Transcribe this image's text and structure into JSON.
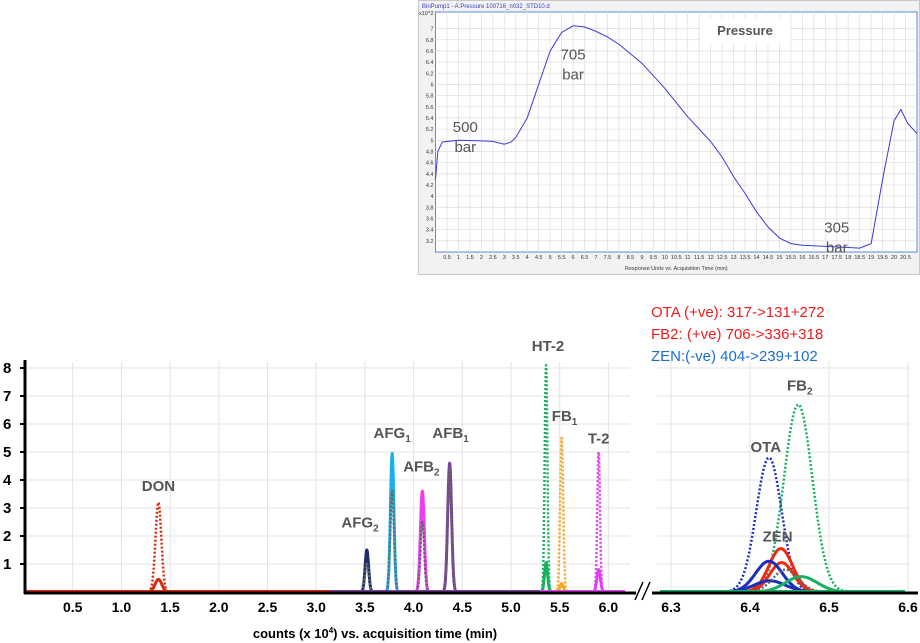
{
  "chart_data": [
    {
      "type": "line",
      "title": "BinPump1 - A:Pressure 100716_n032_STD10.d",
      "annotation_title": "Pressure",
      "y_multiplier": "x10^2",
      "xlabel": "Response Units vs. Acquisition Time (min)",
      "xlim": [
        0,
        21
      ],
      "ylim": [
        3.0,
        7.1
      ],
      "xticks": [
        "0.5",
        "1",
        "1.5",
        "2",
        "2.5",
        "3",
        "3.5",
        "4",
        "4.5",
        "5",
        "5.5",
        "6",
        "6.5",
        "7",
        "7.5",
        "8",
        "8.5",
        "9",
        "9.5",
        "10",
        "10.5",
        "11",
        "11.5",
        "12",
        "12.5",
        "13",
        "13.5",
        "14",
        "14.5",
        "15",
        "15.5",
        "16",
        "16.5",
        "17",
        "17.5",
        "18",
        "18.5",
        "19",
        "19.5",
        "20",
        "20.5"
      ],
      "yticks": [
        "3.2",
        "3.4",
        "3.6",
        "3.8",
        "4",
        "4.2",
        "4.4",
        "4.6",
        "4.8",
        "5",
        "5.2",
        "5.4",
        "5.6",
        "5.8",
        "6",
        "6.2",
        "6.4",
        "6.6",
        "6.8",
        "7"
      ],
      "grid": true,
      "color": "#3a3ad8",
      "points": [
        [
          0,
          4.3
        ],
        [
          0.1,
          4.8
        ],
        [
          0.3,
          4.97
        ],
        [
          1,
          5.0
        ],
        [
          2,
          4.99
        ],
        [
          2.5,
          4.98
        ],
        [
          3,
          4.93
        ],
        [
          3.3,
          4.97
        ],
        [
          3.5,
          5.05
        ],
        [
          4,
          5.4
        ],
        [
          4.5,
          6.0
        ],
        [
          5,
          6.6
        ],
        [
          5.5,
          6.93
        ],
        [
          6,
          7.05
        ],
        [
          6.5,
          7.03
        ],
        [
          7,
          6.95
        ],
        [
          7.5,
          6.85
        ],
        [
          8,
          6.72
        ],
        [
          9,
          6.38
        ],
        [
          10,
          5.93
        ],
        [
          11,
          5.42
        ],
        [
          12,
          4.98
        ],
        [
          12.5,
          4.7
        ],
        [
          13,
          4.35
        ],
        [
          13.5,
          4.05
        ],
        [
          14,
          3.72
        ],
        [
          14.5,
          3.45
        ],
        [
          15,
          3.25
        ],
        [
          15.5,
          3.15
        ],
        [
          16,
          3.12
        ],
        [
          17,
          3.1
        ],
        [
          18,
          3.08
        ],
        [
          18.5,
          3.07
        ],
        [
          19,
          3.15
        ],
        [
          19.5,
          4.3
        ],
        [
          20,
          5.35
        ],
        [
          20.3,
          5.55
        ],
        [
          20.6,
          5.3
        ],
        [
          21,
          5.12
        ]
      ],
      "annotations": [
        {
          "value": "500",
          "unit": "bar",
          "at": [
            1.3,
            5.15
          ]
        },
        {
          "value": "705",
          "unit": "bar",
          "at": [
            6.0,
            6.45
          ]
        },
        {
          "value": "305",
          "unit": "bar",
          "at": [
            17.5,
            3.35
          ]
        }
      ]
    },
    {
      "type": "line",
      "title": "",
      "xlabel": "counts (x 10",
      "xlabel_sup": "4",
      "xlabel_tail": ") vs. acquisition time (min)",
      "ylim": [
        0,
        8.2
      ],
      "yticks": [
        "1",
        "2",
        "3",
        "4",
        "5",
        "6",
        "7",
        "8"
      ],
      "grid": true,
      "broken_axis": true,
      "panels": [
        {
          "xlim": [
            0,
            6.25
          ],
          "xticks": [
            "0.5",
            "1.0",
            "1.5",
            "2.0",
            "2.5",
            "3.0",
            "3.5",
            "4.0",
            "4.5",
            "5.0",
            "5.5",
            "6.0"
          ]
        },
        {
          "xlim": [
            6.28,
            6.6
          ],
          "xticks": [
            "6.3",
            "6.4",
            "6.5",
            "6.6"
          ]
        }
      ],
      "ion_legend": [
        {
          "text": "OTA (+ve): 317->131+272",
          "color": "#ee1c1c"
        },
        {
          "text": "FB2: (+ve) 706->336+318",
          "color": "#ee1c1c"
        },
        {
          "text": "ZEN:(-ve)  404->239+102",
          "color": "#1a6fcc"
        }
      ],
      "peak_labels": [
        {
          "text": "DON",
          "sub": "",
          "panel": 0,
          "x": 1.38,
          "y": 3.6
        },
        {
          "text": "AFG",
          "sub": "2",
          "panel": 0,
          "x": 3.45,
          "y": 2.3
        },
        {
          "text": "AFG",
          "sub": "1",
          "panel": 0,
          "x": 3.78,
          "y": 5.5
        },
        {
          "text": "AFB",
          "sub": "2",
          "panel": 0,
          "x": 4.08,
          "y": 4.3
        },
        {
          "text": "AFB",
          "sub": "1",
          "panel": 0,
          "x": 4.38,
          "y": 5.5
        },
        {
          "text": "HT-2",
          "sub": "",
          "panel": 0,
          "x": 5.38,
          "y": 8.6
        },
        {
          "text": "FB",
          "sub": "1",
          "panel": 0,
          "x": 5.55,
          "y": 6.1
        },
        {
          "text": "T-2",
          "sub": "",
          "panel": 0,
          "x": 5.9,
          "y": 5.3
        },
        {
          "text": "FB",
          "sub": "2",
          "panel": 1,
          "x": 6.463,
          "y": 7.2
        },
        {
          "text": "OTA",
          "sub": "",
          "panel": 1,
          "x": 6.42,
          "y": 5.0
        },
        {
          "text": "ZEN",
          "sub": "",
          "panel": 1,
          "x": 6.435,
          "y": 1.8
        }
      ],
      "series": [
        {
          "name": "DON quant",
          "panel": 0,
          "rt": 1.38,
          "height": 3.2,
          "sigma": 0.03,
          "color": "#d42a10",
          "style": "dotted"
        },
        {
          "name": "DON qual",
          "panel": 0,
          "rt": 1.38,
          "height": 0.45,
          "sigma": 0.035,
          "color": "#d42a10",
          "style": "solid"
        },
        {
          "name": "AFG2 quant",
          "panel": 0,
          "rt": 3.52,
          "height": 1.5,
          "sigma": 0.018,
          "color": "#1b2f6e",
          "style": "solid"
        },
        {
          "name": "AFG2 qual",
          "panel": 0,
          "rt": 3.52,
          "height": 1.0,
          "sigma": 0.02,
          "color": "#666666",
          "style": "dotted"
        },
        {
          "name": "AFG1 quant",
          "panel": 0,
          "rt": 3.78,
          "height": 4.95,
          "sigma": 0.018,
          "color": "#1ab0e8",
          "style": "solid"
        },
        {
          "name": "AFG1 qual",
          "panel": 0,
          "rt": 3.78,
          "height": 3.6,
          "sigma": 0.02,
          "color": "#666666",
          "style": "dotted"
        },
        {
          "name": "AFB2 quant",
          "panel": 0,
          "rt": 4.09,
          "height": 3.6,
          "sigma": 0.02,
          "color": "#f03cf0",
          "style": "solid"
        },
        {
          "name": "AFB2 qual",
          "panel": 0,
          "rt": 4.09,
          "height": 2.5,
          "sigma": 0.02,
          "color": "#666666",
          "style": "dotted"
        },
        {
          "name": "AFB1 quant",
          "panel": 0,
          "rt": 4.37,
          "height": 4.6,
          "sigma": 0.02,
          "color": "#7a3fa0",
          "style": "solid"
        },
        {
          "name": "AFB1 qual",
          "panel": 0,
          "rt": 4.37,
          "height": 4.4,
          "sigma": 0.02,
          "color": "#666666",
          "style": "dotted"
        },
        {
          "name": "HT-2 quant",
          "panel": 0,
          "rt": 5.36,
          "height": 8.1,
          "sigma": 0.014,
          "color": "#18b060",
          "style": "dotted"
        },
        {
          "name": "HT-2 qual",
          "panel": 0,
          "rt": 5.36,
          "height": 1.05,
          "sigma": 0.016,
          "color": "#18b060",
          "style": "solid"
        },
        {
          "name": "FB1 quant",
          "panel": 0,
          "rt": 5.52,
          "height": 5.5,
          "sigma": 0.016,
          "color": "#f5a623",
          "style": "dotted"
        },
        {
          "name": "FB1 qual",
          "panel": 0,
          "rt": 5.52,
          "height": 0.3,
          "sigma": 0.018,
          "color": "#f5a623",
          "style": "solid"
        },
        {
          "name": "T-2 quant",
          "panel": 0,
          "rt": 5.9,
          "height": 5.0,
          "sigma": 0.014,
          "color": "#e040f0",
          "style": "dotted"
        },
        {
          "name": "T-2 qual",
          "panel": 0,
          "rt": 5.9,
          "height": 0.8,
          "sigma": 0.018,
          "color": "#e040f0",
          "style": "solid"
        },
        {
          "name": "OTA quant",
          "panel": 1,
          "rt": 6.424,
          "height": 4.8,
          "sigma": 0.016,
          "color": "#1a2fc0",
          "style": "dotted"
        },
        {
          "name": "FB2 quant",
          "panel": 1,
          "rt": 6.461,
          "height": 6.7,
          "sigma": 0.018,
          "color": "#18b060",
          "style": "dotted"
        },
        {
          "name": "ZEN quant",
          "panel": 1,
          "rt": 6.439,
          "height": 1.55,
          "sigma": 0.015,
          "color": "#ee2a10",
          "style": "solid"
        },
        {
          "name": "ZEN qual",
          "panel": 1,
          "rt": 6.44,
          "height": 1.05,
          "sigma": 0.015,
          "color": "#ee2a10",
          "style": "solid"
        },
        {
          "name": "OTA qual 1",
          "panel": 1,
          "rt": 6.424,
          "height": 1.1,
          "sigma": 0.017,
          "color": "#1a2fc0",
          "style": "solid"
        },
        {
          "name": "OTA qual 2",
          "panel": 1,
          "rt": 6.425,
          "height": 0.4,
          "sigma": 0.02,
          "color": "#1a2fc0",
          "style": "solid"
        },
        {
          "name": "FB2 qual 1",
          "panel": 1,
          "rt": 6.445,
          "height": 0.8,
          "sigma": 0.016,
          "color": "#666666",
          "style": "dotted"
        },
        {
          "name": "FB2 qual 2",
          "panel": 1,
          "rt": 6.465,
          "height": 0.55,
          "sigma": 0.02,
          "color": "#18b060",
          "style": "solid"
        }
      ]
    }
  ]
}
